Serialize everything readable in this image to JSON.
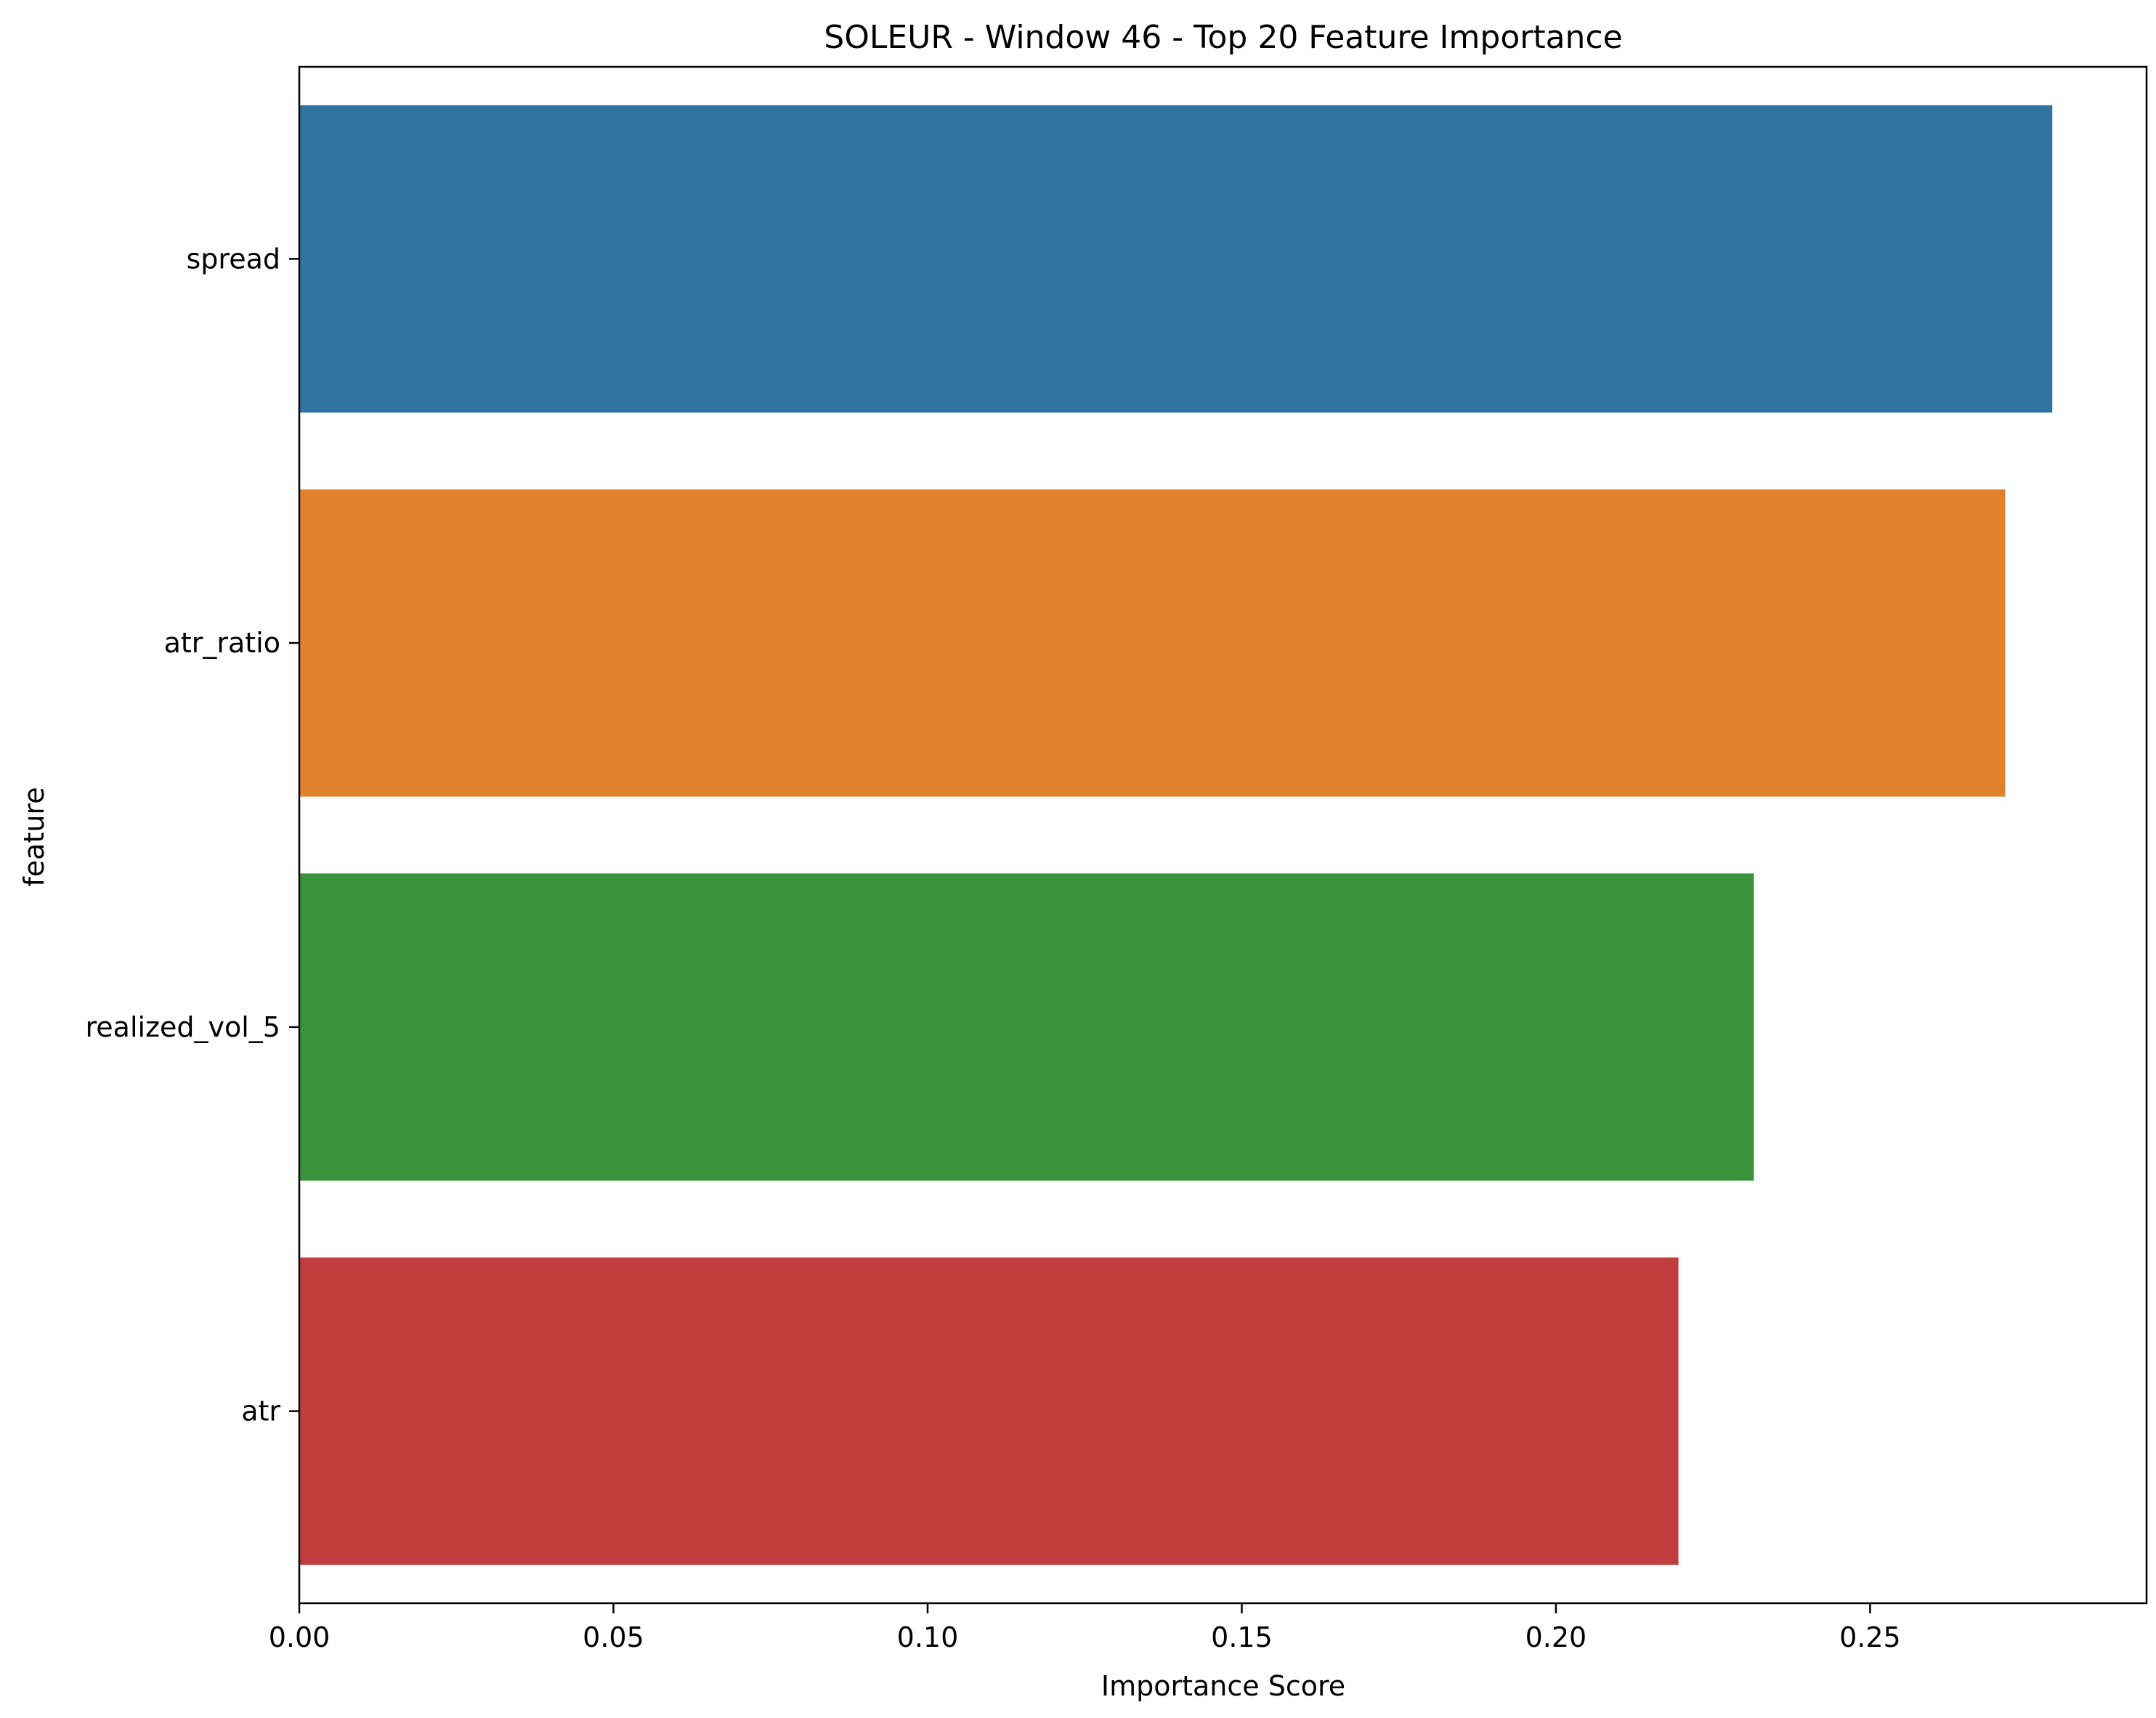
{
  "chart_data": {
    "type": "bar",
    "orientation": "horizontal",
    "title": "SOLEUR - Window 46 - Top 20 Feature Importance",
    "xlabel": "Importance Score",
    "ylabel": "feature",
    "categories": [
      "spread",
      "atr_ratio",
      "realized_vol_5",
      "atr"
    ],
    "values": [
      0.279,
      0.2715,
      0.2315,
      0.2195
    ],
    "colors": [
      "#3274a1",
      "#e1812c",
      "#3a923a",
      "#c03d3e"
    ],
    "xlim": [
      0,
      0.294
    ],
    "xticks": [
      0.0,
      0.05,
      0.1,
      0.15,
      0.2,
      0.25
    ],
    "xtick_labels": [
      "0.00",
      "0.05",
      "0.10",
      "0.15",
      "0.20",
      "0.25"
    ],
    "grid": false,
    "legend": "none"
  }
}
